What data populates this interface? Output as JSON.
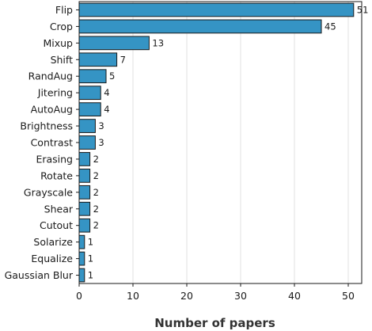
{
  "chart_data": {
    "type": "bar",
    "orientation": "horizontal",
    "categories": [
      "Flip",
      "Crop",
      "Mixup",
      "Shift",
      "RandAug",
      "Jitering",
      "AutoAug",
      "Brightness",
      "Contrast",
      "Erasing",
      "Rotate",
      "Grayscale",
      "Shear",
      "Cutout",
      "Solarize",
      "Equalize",
      "Gaussian Blur"
    ],
    "values": [
      51,
      45,
      13,
      7,
      5,
      4,
      4,
      3,
      3,
      2,
      2,
      2,
      2,
      2,
      1,
      1,
      1
    ],
    "xlabel": "Number of papers",
    "ylabel": "",
    "title": "",
    "xlim": [
      0,
      52.5
    ],
    "xticks": [
      0,
      10,
      20,
      30,
      40,
      50
    ],
    "grid": "vertical",
    "bar_color": "#3594c4",
    "data_labels": true
  }
}
